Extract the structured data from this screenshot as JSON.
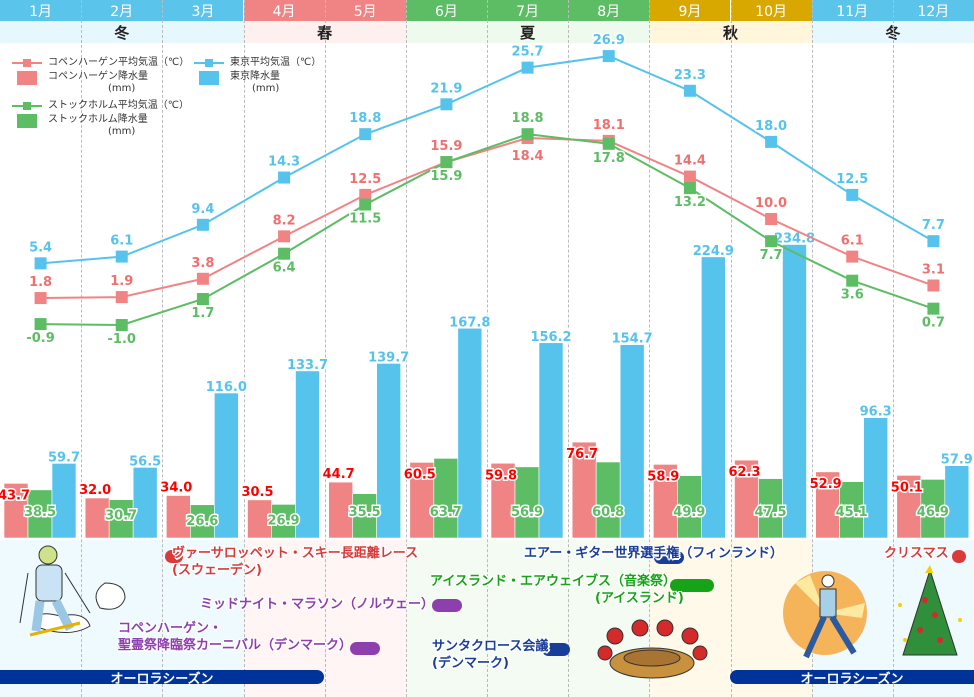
{
  "months": [
    "1月",
    "2月",
    "3月",
    "4月",
    "5月",
    "6月",
    "7月",
    "8月",
    "9月",
    "10月",
    "11月",
    "12月"
  ],
  "seasons": [
    {
      "label": "冬",
      "from": 0,
      "to": 2,
      "color": "#5bc4ea",
      "bg": "#e6f7fd",
      "body": "#eefafe"
    },
    {
      "label": "春",
      "from": 3,
      "to": 4,
      "color": "#f08484",
      "bg": "#fff0f0",
      "body": "#fff5f5"
    },
    {
      "label": "夏",
      "from": 5,
      "to": 7,
      "color": "#5cbd64",
      "bg": "#eefaee",
      "body": "#f3fbf3"
    },
    {
      "label": "秋",
      "from": 8,
      "to": 9,
      "color": "#d9a800",
      "bg": "#fff6dc",
      "body": "#fff9ea"
    },
    {
      "label": "冬",
      "from": 10,
      "to": 11,
      "color": "#5bc4ea",
      "bg": "#e6f7fd",
      "body": "#eefafe"
    }
  ],
  "legend": {
    "cph_temp": "コペンハーゲン平均気温（℃）",
    "cph_rain": "コペンハーゲン降水量",
    "sto_temp": "ストックホルム平均気温（℃）",
    "sto_rain": "ストックホルム降水量",
    "tyo_temp": "東京平均気温（℃）",
    "tyo_rain": "東京降水量",
    "unit": "(mm)"
  },
  "chart_data": {
    "type": "bar+line",
    "categories": [
      "1月",
      "2月",
      "3月",
      "4月",
      "5月",
      "6月",
      "7月",
      "8月",
      "9月",
      "10月",
      "11月",
      "12月"
    ],
    "series": [
      {
        "name": "コペンハーゲン降水量(mm)",
        "kind": "bar",
        "color": "#f08484",
        "label_color": "#ff0000",
        "values": [
          43.7,
          32.0,
          34.0,
          30.5,
          44.7,
          60.5,
          59.8,
          76.7,
          58.9,
          62.3,
          52.9,
          50.1
        ]
      },
      {
        "name": "ストックホルム降水量(mm)",
        "kind": "bar",
        "color": "#5cbd64",
        "label_color": "#5cbd64",
        "values": [
          38.5,
          30.7,
          26.6,
          26.9,
          35.5,
          63.7,
          56.9,
          60.8,
          49.9,
          47.5,
          45.1,
          46.9
        ]
      },
      {
        "name": "東京降水量(mm)",
        "kind": "bar",
        "color": "#56c3ec",
        "label_color": "#56c3ec",
        "values": [
          59.7,
          56.5,
          116.0,
          133.7,
          139.7,
          167.8,
          156.2,
          154.7,
          224.9,
          234.8,
          96.3,
          57.9
        ]
      },
      {
        "name": "コペンハーゲン平均気温(℃)",
        "kind": "line",
        "color": "#f08484",
        "values": [
          1.8,
          1.9,
          3.8,
          8.2,
          12.5,
          15.9,
          18.4,
          18.1,
          14.4,
          10.0,
          6.1,
          3.1
        ]
      },
      {
        "name": "ストックホルム平均気温(℃)",
        "kind": "line",
        "color": "#5cbd64",
        "values": [
          -0.9,
          -1.0,
          1.7,
          6.4,
          11.5,
          15.9,
          18.8,
          17.8,
          13.2,
          7.7,
          3.6,
          0.7
        ]
      },
      {
        "name": "東京平均気温(℃)",
        "kind": "line",
        "color": "#56c3ec",
        "values": [
          5.4,
          6.1,
          9.4,
          14.3,
          18.8,
          21.9,
          25.7,
          26.9,
          23.3,
          18.0,
          12.5,
          7.7
        ]
      }
    ],
    "grid": false,
    "legend_position": "top-left"
  },
  "events": [
    {
      "lines": [
        "ヴァーサロッペット・スキー長距離レース",
        "(スウェーデン)"
      ],
      "color": "#d93a3a"
    },
    {
      "lines": [
        "ミッドナイト・マラソン（ノルウェー）"
      ],
      "color": "#8e3fae"
    },
    {
      "lines": [
        "コペンハーゲン・",
        "聖霊祭降臨祭カーニバル（デンマーク）"
      ],
      "color": "#8e3fae"
    },
    {
      "lines": [
        "エアー・ギター世界選手権（フィンランド）"
      ],
      "color": "#1a3d99"
    },
    {
      "lines": [
        "アイスランド・エアウェイブス（音楽祭）",
        "(アイスランド)"
      ],
      "color": "#17a317"
    },
    {
      "lines": [
        "サンタクロース会議",
        "(デンマーク)"
      ],
      "color": "#1a3d99"
    },
    {
      "lines": [
        "クリスマス"
      ],
      "color": "#d93a3a"
    }
  ],
  "aurora": [
    "オーロラシーズン",
    "オーロラシーズン"
  ]
}
